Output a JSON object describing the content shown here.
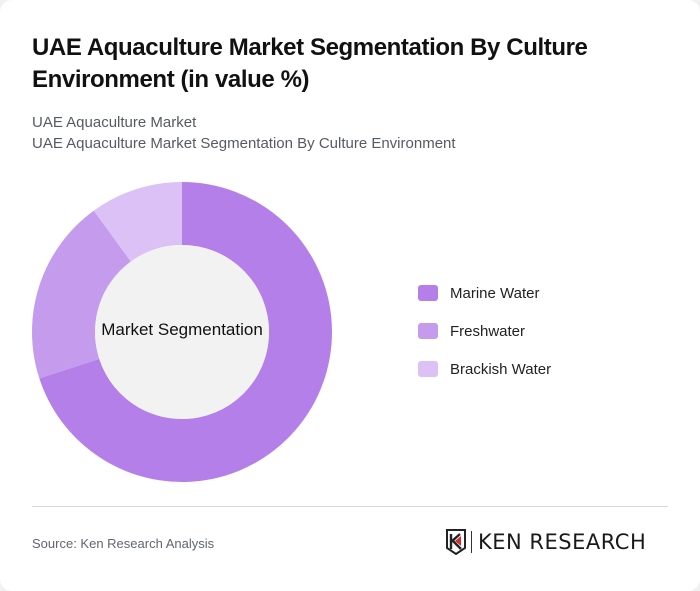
{
  "header": {
    "title": "UAE Aquaculture Market Segmentation By Culture Environment (in value %)",
    "subtitle_1": "UAE Aquaculture Market",
    "subtitle_2": "UAE Aquaculture Market Segmentation By Culture Environment"
  },
  "chart": {
    "center_label": "Market Segmentation"
  },
  "legend": {
    "items": [
      {
        "label": "Marine Water",
        "color": "#b57fea"
      },
      {
        "label": "Freshwater",
        "color": "#c59bee"
      },
      {
        "label": "Brackish Water",
        "color": "#dcc1f7"
      }
    ]
  },
  "footer": {
    "source": "Source: Ken Research Analysis",
    "logo_text": "KEN RESEARCH"
  },
  "chart_data": {
    "type": "pie",
    "subtype": "donut",
    "title": "UAE Aquaculture Market Segmentation By Culture Environment (in value %)",
    "subtitle": "UAE Aquaculture Market Segmentation By Culture Environment",
    "center_label": "Market Segmentation",
    "categories": [
      "Marine Water",
      "Freshwater",
      "Brackish Water"
    ],
    "values": [
      70,
      20,
      10
    ],
    "colors": [
      "#b57fea",
      "#c59bee",
      "#dcc1f7"
    ],
    "unit": "%",
    "legend_position": "right",
    "start_angle": "top, clockwise"
  }
}
